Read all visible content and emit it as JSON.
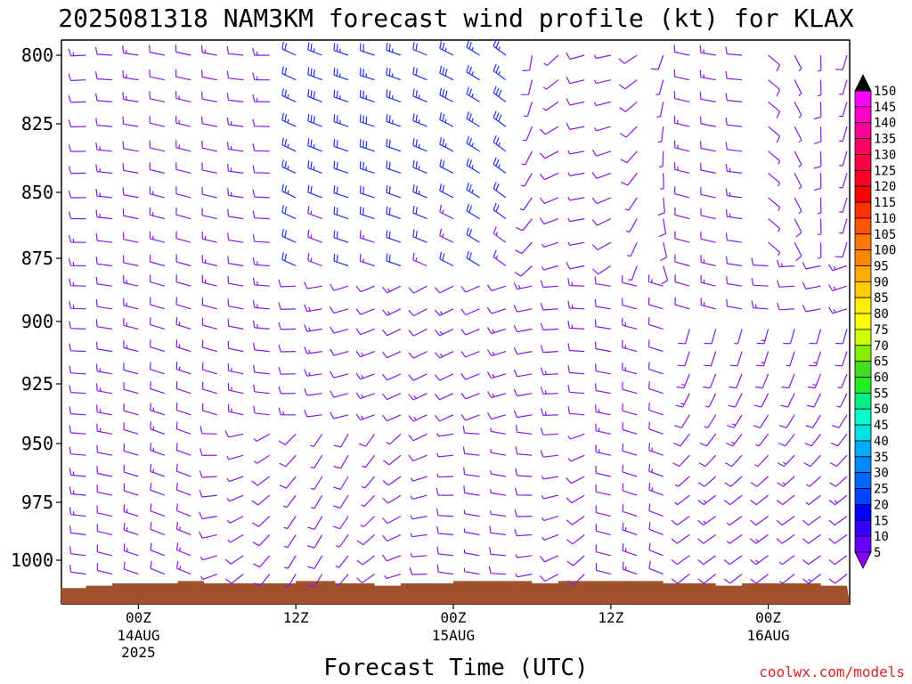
{
  "title": "2025081318 NAM3KM forecast wind profile (kt) for KLAX",
  "credit": "coolwx.com/models",
  "chart_data": {
    "type": "barbs",
    "xlabel": "Forecast Time (UTC)",
    "ylabel": "",
    "y_ticks": [
      "800",
      "825",
      "850",
      "875",
      "900",
      "925",
      "950",
      "975",
      "1000"
    ],
    "y_tick_values": [
      800,
      825,
      850,
      875,
      900,
      925,
      950,
      975,
      1000
    ],
    "x_ticks": [
      {
        "label": "00Z",
        "hour": 6,
        "lines": [
          "14AUG",
          "2025"
        ]
      },
      {
        "label": "12Z",
        "hour": 18,
        "lines": []
      },
      {
        "label": "00Z",
        "hour": 30,
        "lines": [
          "15AUG"
        ]
      },
      {
        "label": "12Z",
        "hour": 42,
        "lines": []
      },
      {
        "label": "00Z",
        "hour": 54,
        "lines": [
          "16AUG"
        ]
      }
    ],
    "time_range_hours": [
      0,
      60
    ],
    "pressure_range_hpa": [
      796,
      1017
    ],
    "colorbar_labels": [
      "150",
      "145",
      "140",
      "135",
      "130",
      "125",
      "120",
      "115",
      "110",
      "105",
      "100",
      "95",
      "90",
      "85",
      "80",
      "75",
      "70",
      "65",
      "60",
      "55",
      "50",
      "45",
      "40",
      "35",
      "30",
      "25",
      "20",
      "15",
      "10",
      "5"
    ],
    "colorbar_colors": [
      "#ff00ff",
      "#ff00cc",
      "#ff0099",
      "#ff0066",
      "#ff0044",
      "#ff0022",
      "#ff0000",
      "#ff3300",
      "#ff5500",
      "#ff7700",
      "#ff8800",
      "#ffaa00",
      "#ffcc00",
      "#ffee00",
      "#ffff00",
      "#ccff00",
      "#88ee00",
      "#44dd22",
      "#22ee22",
      "#00ee88",
      "#00ffcc",
      "#00e0e0",
      "#00aaff",
      "#0088ff",
      "#0066ff",
      "#0044ff",
      "#0000ff",
      "#3300ff",
      "#6600ff",
      "#8800ff"
    ],
    "wind_field": {
      "note": "barbs sampled every 2 hours at 25 pressure levels; speed in kt, direction in degrees (from)",
      "levels": [
        800,
        809,
        817,
        826,
        835,
        843,
        852,
        860,
        869,
        878,
        886,
        895,
        903,
        912,
        921,
        929,
        938,
        946,
        955,
        964,
        972,
        981,
        989,
        998,
        1006
      ],
      "hours": [
        0,
        2,
        4,
        6,
        8,
        10,
        12,
        14,
        16,
        18,
        20,
        22,
        24,
        26,
        28,
        30,
        32,
        34,
        36,
        38,
        40,
        42,
        44,
        46,
        48,
        50,
        52,
        54,
        56,
        58,
        60
      ]
    },
    "terrain": {
      "color": "#a0522d",
      "surface_pressure": [
        [
          0,
          1012
        ],
        [
          2,
          1011
        ],
        [
          4,
          1010
        ],
        [
          6,
          1010
        ],
        [
          8,
          1010
        ],
        [
          9,
          1009
        ],
        [
          10,
          1009
        ],
        [
          11,
          1010
        ],
        [
          14,
          1010
        ],
        [
          16,
          1010
        ],
        [
          18,
          1009
        ],
        [
          20,
          1009
        ],
        [
          21,
          1010
        ],
        [
          23,
          1010
        ],
        [
          24,
          1011
        ],
        [
          26,
          1010
        ],
        [
          28,
          1010
        ],
        [
          30,
          1009
        ],
        [
          32,
          1009
        ],
        [
          34,
          1009
        ],
        [
          36,
          1010
        ],
        [
          38,
          1009
        ],
        [
          40,
          1009
        ],
        [
          42,
          1009
        ],
        [
          44,
          1009
        ],
        [
          46,
          1010
        ],
        [
          48,
          1010
        ],
        [
          50,
          1011
        ],
        [
          52,
          1010
        ],
        [
          54,
          1010
        ],
        [
          56,
          1010
        ],
        [
          58,
          1011
        ],
        [
          60,
          1011
        ]
      ]
    }
  }
}
